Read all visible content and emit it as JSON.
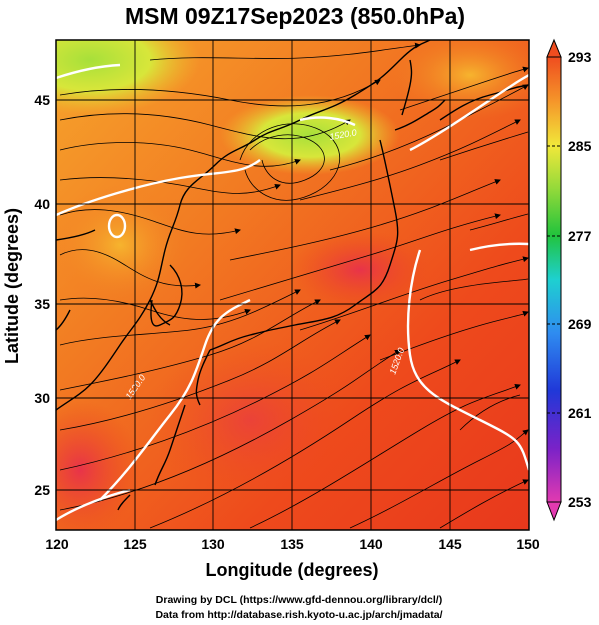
{
  "title": "MSM 09Z17Sep2023 (850.0hPa)",
  "xlabel": "Longitude (degrees)",
  "ylabel": "Latitude  (degrees)",
  "x_ticks": [
    "120",
    "125",
    "130",
    "135",
    "140",
    "145",
    "150"
  ],
  "y_ticks": [
    "45",
    "40",
    "35",
    "30",
    "25"
  ],
  "colorbar": {
    "ticks": [
      "293",
      "285",
      "277",
      "269",
      "261",
      "253"
    ],
    "min": 253,
    "max": 293,
    "colors": [
      "#e23ab0",
      "#3a1ad6",
      "#2f7cf0",
      "#1ed0d0",
      "#22c33c",
      "#9be33a",
      "#f1e83a",
      "#f5a62a",
      "#ef4d1f"
    ]
  },
  "contour_labels": [
    "1520.0",
    "1520.0",
    "1520.0"
  ],
  "credits": {
    "line1": "Drawing by DCL (https://www.gfd-dennou.org/library/dcl/)",
    "line2": "Data from http://database.rish.kyoto-u.ac.jp/arch/jmadata/"
  },
  "chart_data": {
    "type": "heatmap",
    "title": "MSM 09Z17Sep2023 (850.0hPa)",
    "xlabel": "Longitude (degrees)",
    "ylabel": "Latitude  (degrees)",
    "xlim": [
      120,
      150
    ],
    "ylim": [
      22.5,
      47.6
    ],
    "x_ticks": [
      120,
      125,
      130,
      135,
      140,
      145,
      150
    ],
    "y_ticks": [
      25,
      30,
      35,
      40,
      45
    ],
    "grid": true,
    "colorbar_range": [
      253,
      293
    ],
    "colorbar_ticks": [
      253,
      261,
      269,
      277,
      285,
      293
    ],
    "colorbar_placement": "right",
    "overlays": [
      "streamlines",
      "geopotential height contour 1520.0",
      "coastlines"
    ]
  }
}
